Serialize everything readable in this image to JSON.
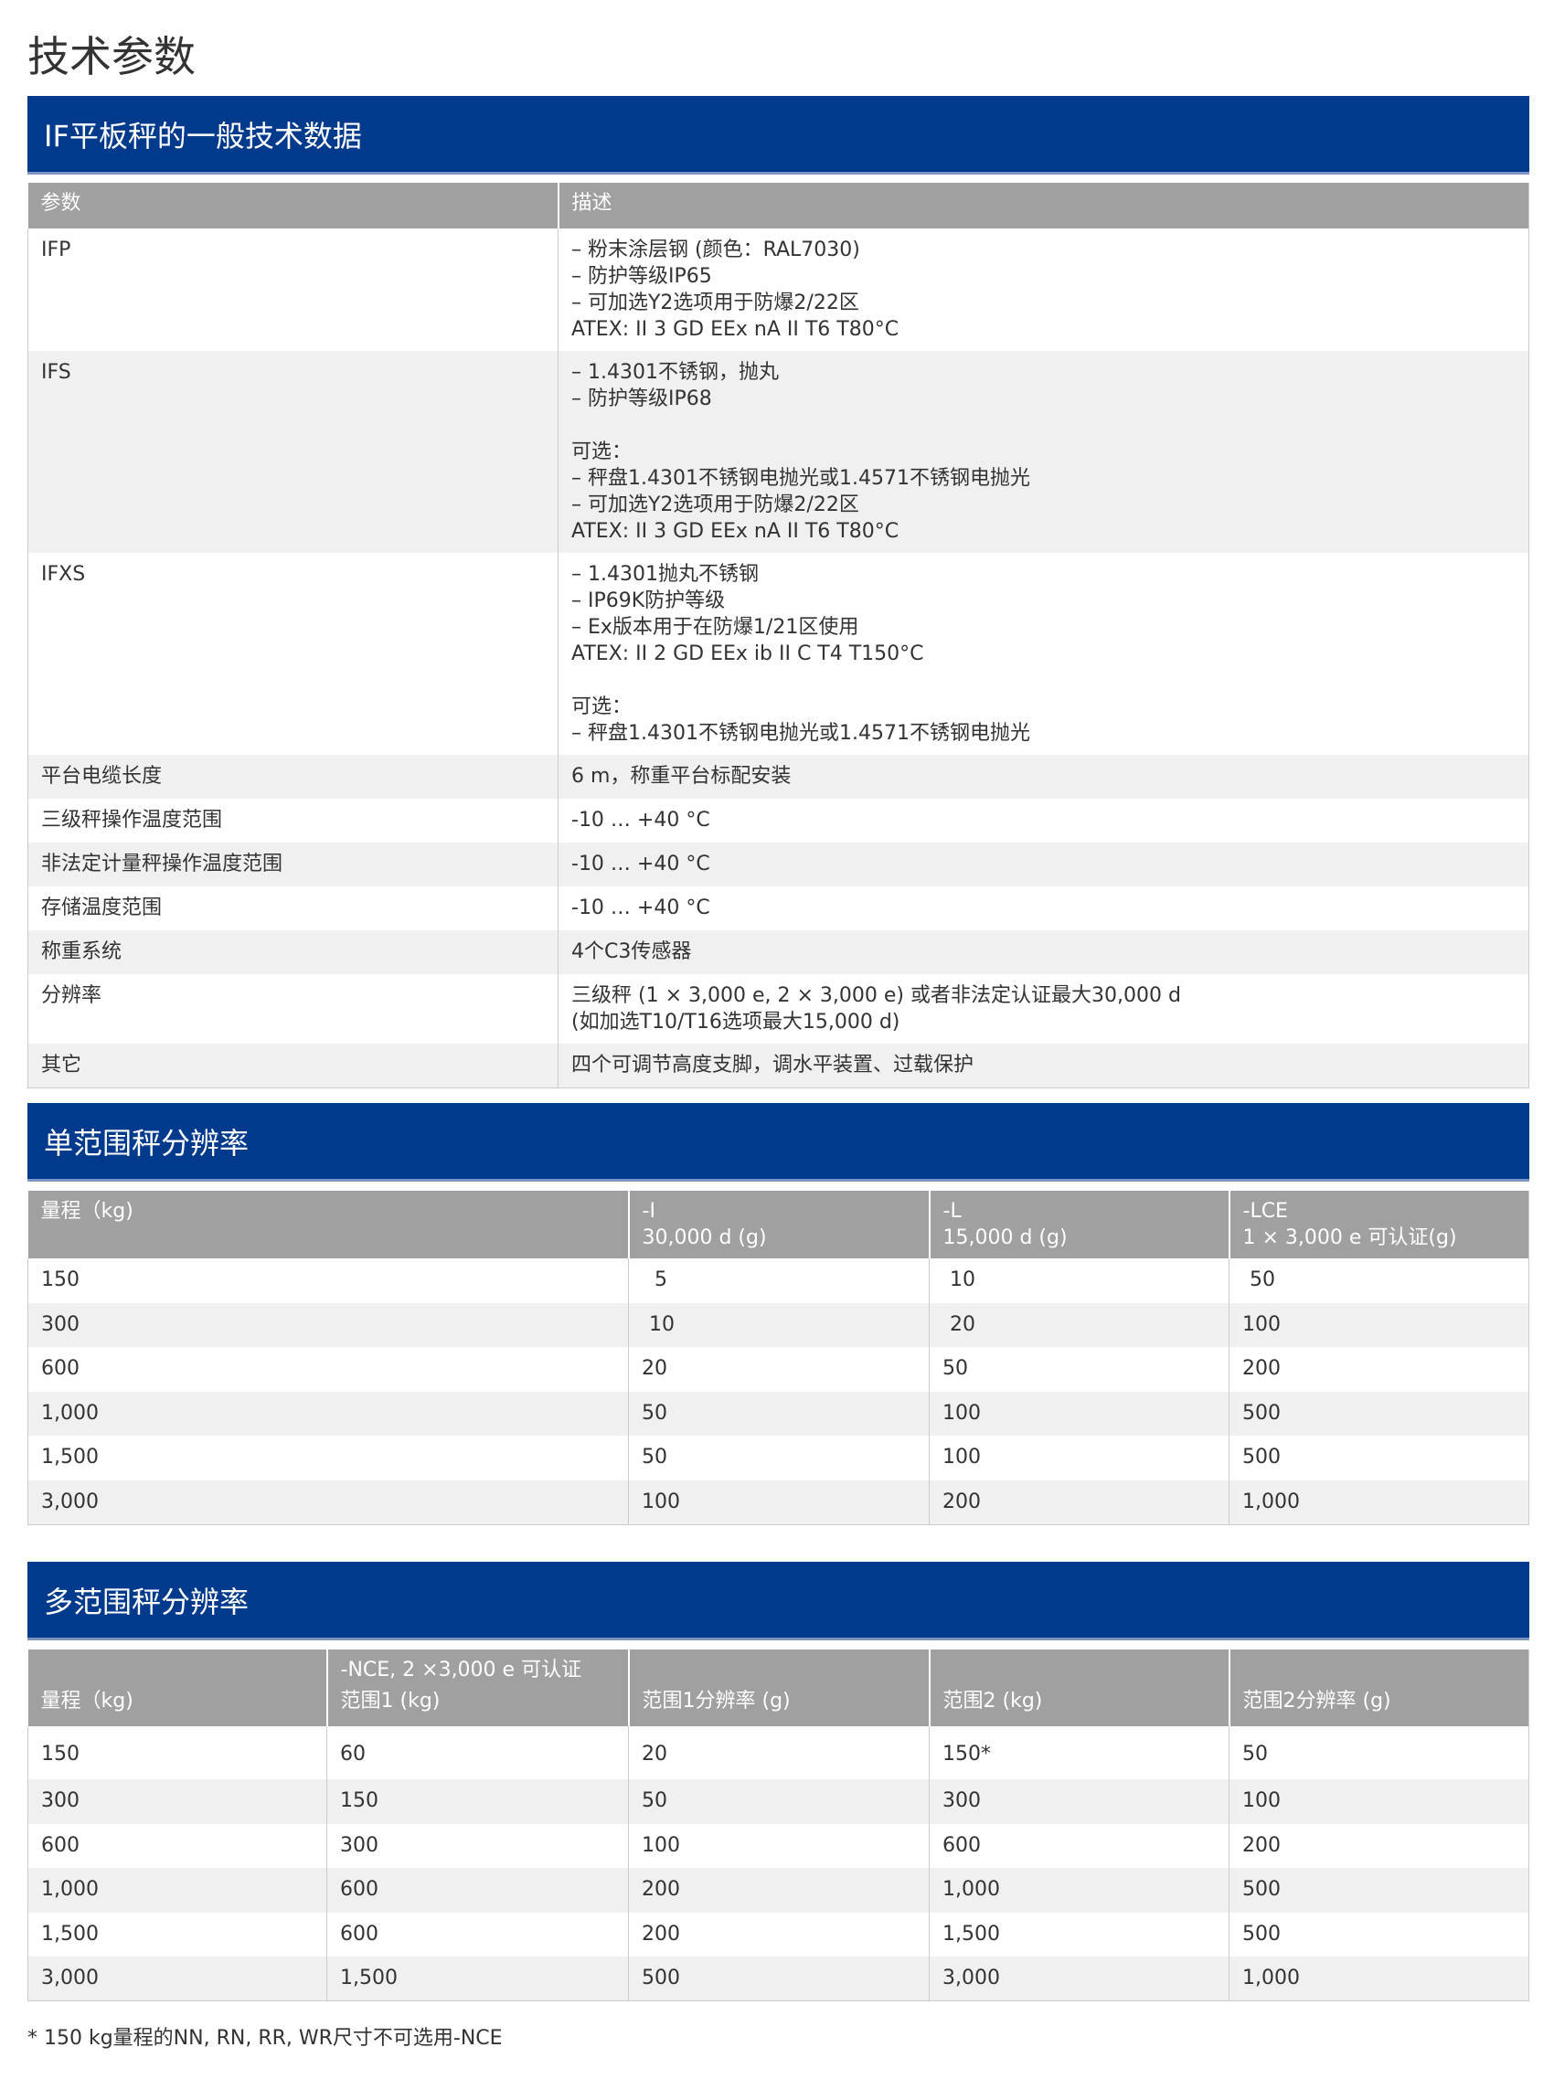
{
  "page_title": "技术参数",
  "colors": {
    "banner": "#003a8c",
    "header": "#a0a0a0",
    "alt_row": "#f0f0f0"
  },
  "general": {
    "title": "IF平板秤的一般技术数据",
    "headers": [
      "参数",
      "描述"
    ],
    "rows": [
      {
        "param": "IFP",
        "desc": [
          "– 粉末涂层钢 (颜色：RAL7030)",
          "– 防护等级IP65",
          "– 可加选Y2选项用于防爆2/22区",
          "ATEX: II 3 GD EEx nA II T6 T80°C"
        ]
      },
      {
        "param": "IFS",
        "desc": [
          "– 1.4301不锈钢，抛丸",
          "– 防护等级IP68",
          "",
          "可选：",
          "– 秤盘1.4301不锈钢电抛光或1.4571不锈钢电抛光",
          "– 可加选Y2选项用于防爆2/22区",
          "ATEX: II 3 GD EEx nA II T6 T80°C"
        ]
      },
      {
        "param": "IFXS",
        "desc": [
          "– 1.4301抛丸不锈钢",
          "– IP69K防护等级",
          "– Ex版本用于在防爆1/21区使用",
          "ATEX: II 2 GD EEx ib II C T4 T150°C",
          "",
          "可选：",
          "– 秤盘1.4301不锈钢电抛光或1.4571不锈钢电抛光"
        ]
      },
      {
        "param": "平台电缆长度",
        "desc": [
          "6 m，称重平台标配安装"
        ]
      },
      {
        "param": "三级秤操作温度范围",
        "desc": [
          "-10 … +40 °C"
        ]
      },
      {
        "param": "非法定计量秤操作温度范围",
        "desc": [
          "-10 … +40 °C"
        ]
      },
      {
        "param": "存储温度范围",
        "desc": [
          "-10 … +40 °C"
        ]
      },
      {
        "param": "称重系统",
        "desc": [
          "4个C3传感器"
        ]
      },
      {
        "param": "分辨率",
        "desc": [
          "三级秤 (1 × 3,000 e, 2 × 3,000 e) 或者非法定认证最大30,000 d",
          "(如加选T10/T16选项最大15,000 d)"
        ]
      },
      {
        "param": "其它",
        "desc": [
          "四个可调节高度支脚，调水平装置、过载保护"
        ]
      }
    ]
  },
  "single": {
    "title": "单范围秤分辨率",
    "headers": [
      [
        "量程（kg)"
      ],
      [
        "-I",
        "30,000 d (g)"
      ],
      [
        "-L",
        "15,000 d (g)"
      ],
      [
        "-LCE",
        "1 × 3,000 e 可认证(g)"
      ]
    ],
    "rows": [
      [
        "150",
        "5",
        "10",
        "50"
      ],
      [
        "300",
        "10",
        "20",
        "100"
      ],
      [
        "600",
        "20",
        "50",
        "200"
      ],
      [
        "1,000",
        "50",
        "100",
        "500"
      ],
      [
        "1,500",
        "50",
        "100",
        "500"
      ],
      [
        "3,000",
        "100",
        "200",
        "1,000"
      ]
    ]
  },
  "multi": {
    "title": "多范围秤分辨率",
    "header_top": "-NCE, 2 ×3,000 e 可认证",
    "headers": [
      "量程（kg)",
      "范围1 (kg)",
      "范围1分辨率 (g)",
      "范围2 (kg)",
      "范围2分辨率 (g)"
    ],
    "rows": [
      [
        "150",
        "60",
        "20",
        "150*",
        "50"
      ],
      [
        "300",
        "150",
        "50",
        "300",
        "100"
      ],
      [
        "600",
        "300",
        "100",
        "600",
        "200"
      ],
      [
        "1,000",
        "600",
        "200",
        "1,000",
        "500"
      ],
      [
        "1,500",
        "600",
        "200",
        "1,500",
        "500"
      ],
      [
        "3,000",
        "1,500",
        "500",
        "3,000",
        "1,000"
      ]
    ]
  },
  "footnote": "* 150 kg量程的NN, RN, RR, WR尺寸不可选用-NCE"
}
